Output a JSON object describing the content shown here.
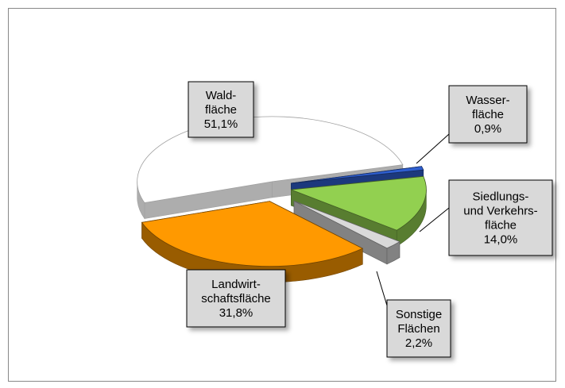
{
  "chart_data": {
    "type": "pie",
    "categories": [
      "Wald-\nfläche",
      "Wasser-\nfläche",
      "Siedlungs-\nund Verkehrs-\nfläche",
      "Sonstige\nFlächen",
      "Landwirt-\nschaftsfläche"
    ],
    "values": [
      51.1,
      0.9,
      14.0,
      2.2,
      31.8
    ],
    "value_labels": [
      "51,1%",
      "0,9%",
      "14,0%",
      "2,2%",
      "31,8%"
    ],
    "colors": [
      "#ffffff",
      "#2f5fd0",
      "#92d050",
      "#d9d9d9",
      "#ff9900"
    ]
  }
}
